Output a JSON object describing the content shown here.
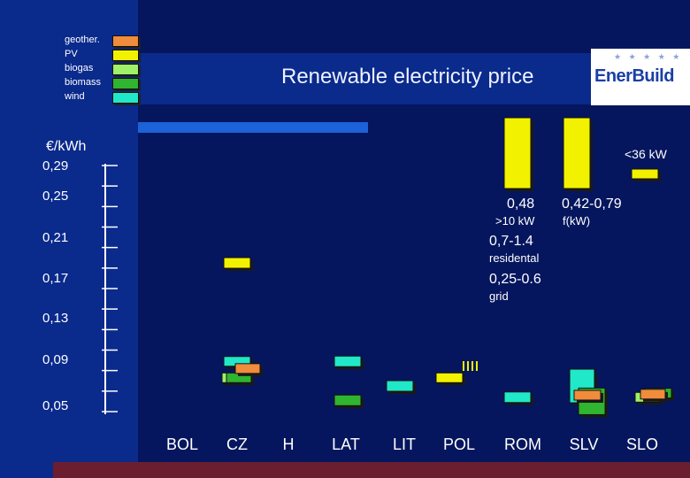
{
  "title": "Renewable electricity price",
  "logo": {
    "text": "EnerBuild",
    "stars": "★ ★ ★ ★ ★"
  },
  "colors": {
    "geothermal": "#f08c3c",
    "pv": "#f2f200",
    "biogas": "#9ef26a",
    "biomass": "#2fb52f",
    "wind": "#20e8c8",
    "axis": "#ffffff",
    "background": "#05165e"
  },
  "chart_data": {
    "type": "bar",
    "title": "Renewable electricity price",
    "ylabel": "€/kWh",
    "xlabel": "",
    "ylim": [
      0.05,
      0.29
    ],
    "yticks": [
      "0,29",
      "0,25",
      "0,21",
      "0,17",
      "0,13",
      "0,09",
      "0,05"
    ],
    "ytick_values": [
      0.29,
      0.25,
      0.21,
      0.17,
      0.13,
      0.09,
      0.05
    ],
    "categories": [
      "BOL",
      "CZ",
      "H",
      "LAT",
      "LIT",
      "POL",
      "ROM",
      "SLV",
      "SLO"
    ],
    "legend": [
      {
        "key": "geothermal",
        "label": "geother."
      },
      {
        "key": "pv",
        "label": "PV"
      },
      {
        "key": "biogas",
        "label": "biogas"
      },
      {
        "key": "biomass",
        "label": "biomass"
      },
      {
        "key": "wind",
        "label": "wind"
      }
    ],
    "series": [
      {
        "name": "geother.",
        "key": "geothermal",
        "points": [
          {
            "category": "CZ",
            "value": 0.092
          },
          {
            "category": "SLV",
            "value": 0.066
          },
          {
            "category": "SLO",
            "value": 0.067
          }
        ]
      },
      {
        "name": "PV",
        "key": "pv",
        "points": [
          {
            "category": "CZ",
            "value": 0.195
          },
          {
            "category": "POL",
            "value": 0.083
          }
        ]
      },
      {
        "name": "biogas",
        "key": "biogas",
        "points": [
          {
            "category": "CZ",
            "value": 0.083
          },
          {
            "category": "SLO",
            "value": 0.064
          }
        ]
      },
      {
        "name": "biomass",
        "key": "biomass",
        "points": [
          {
            "category": "CZ",
            "value": 0.083
          },
          {
            "category": "LAT",
            "value": 0.061
          },
          {
            "category": "SLV",
            "value": 0.06
          },
          {
            "category": "SLO",
            "value": 0.068
          }
        ]
      },
      {
        "name": "wind",
        "key": "wind",
        "points": [
          {
            "category": "CZ",
            "value": 0.099
          },
          {
            "category": "LAT",
            "value": 0.099
          },
          {
            "category": "LIT",
            "value": 0.075
          },
          {
            "category": "ROM",
            "value": 0.064
          },
          {
            "category": "SLV",
            "value": 0.075
          }
        ]
      }
    ],
    "annotations": {
      "pv_slo_high": "<36 kW",
      "pv_lit_value": "0,48",
      "pv_lit_sub": ">10 kW",
      "pv_pol_value": "0,42-0,79",
      "pv_pol_sub": "f(kW)",
      "pv_res_value": "0,7-1.4",
      "pv_res_sub": "residental",
      "pv_grid_value": "0,25-0.6",
      "pv_grid_sub": "grid"
    }
  }
}
